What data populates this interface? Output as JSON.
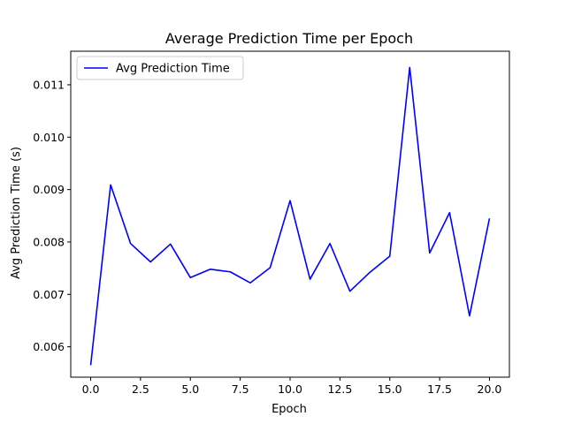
{
  "chart_data": {
    "type": "line",
    "title": "Average Prediction Time per Epoch",
    "xlabel": "Epoch",
    "ylabel": "Avg Prediction Time (s)",
    "xlim": [
      -1.0,
      21.0
    ],
    "ylim": [
      0.00542,
      0.01164
    ],
    "xticks": [
      0.0,
      2.5,
      5.0,
      7.5,
      10.0,
      12.5,
      15.0,
      17.5,
      20.0
    ],
    "xtick_labels": [
      "0.0",
      "2.5",
      "5.0",
      "7.5",
      "10.0",
      "12.5",
      "15.0",
      "17.5",
      "20.0"
    ],
    "yticks": [
      0.006,
      0.007,
      0.008,
      0.009,
      0.01,
      0.011
    ],
    "ytick_labels": [
      "0.006",
      "0.007",
      "0.008",
      "0.009",
      "0.010",
      "0.011"
    ],
    "grid": false,
    "legend_position": "upper-left",
    "series": [
      {
        "name": "Avg Prediction Time",
        "color": "#0000ff",
        "x": [
          0,
          1,
          2,
          3,
          4,
          5,
          6,
          7,
          8,
          9,
          10,
          11,
          12,
          13,
          14,
          15,
          16,
          17,
          18,
          19,
          20
        ],
        "values": [
          0.00565,
          0.00909,
          0.00797,
          0.00762,
          0.00796,
          0.00732,
          0.00748,
          0.00743,
          0.00722,
          0.00751,
          0.00879,
          0.00729,
          0.00797,
          0.00706,
          0.00742,
          0.00773,
          0.01133,
          0.00779,
          0.00856,
          0.00659,
          0.00845
        ]
      }
    ]
  }
}
